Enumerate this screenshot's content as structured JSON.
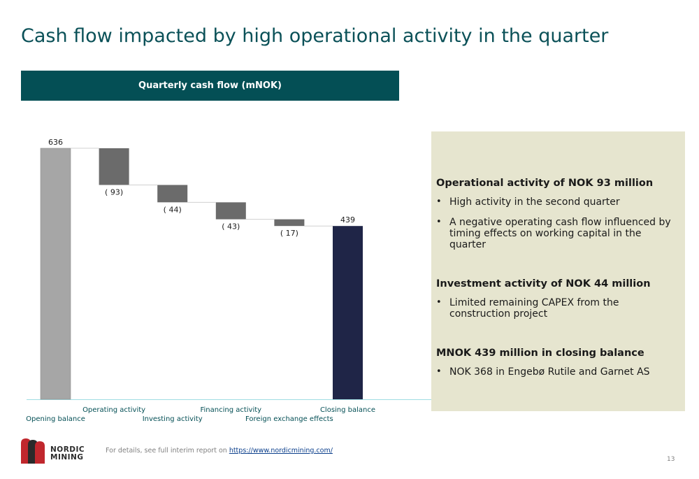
{
  "page": {
    "title": "Cash flow impacted by high operational activity in the quarter",
    "chart_header": "Quarterly cash flow (mNOK)",
    "page_number": "13"
  },
  "chart_data": {
    "type": "waterfall",
    "title": "Quarterly cash flow (mNOK)",
    "categories": [
      "Opening balance",
      "Operating activity",
      "Investing activity",
      "Financing activity",
      "Foreign exchange effects",
      "Closing balance"
    ],
    "values": [
      636,
      -93,
      -44,
      -43,
      -17,
      439
    ],
    "value_labels": [
      "636",
      "( 93)",
      "( 44)",
      "( 43)",
      "( 17)",
      "439"
    ],
    "kinds": [
      "total",
      "delta",
      "delta",
      "delta",
      "delta",
      "total"
    ],
    "ylim": [
      0,
      636
    ],
    "colors": {
      "opening": "#a6a6a6",
      "delta": "#6b6b6b",
      "closing": "#1f2547",
      "axis": "#9fdde3",
      "connector": "#d0d0d0",
      "category_label": "#044f55"
    }
  },
  "info_panel": {
    "sections": [
      {
        "heading": "Operational activity of NOK 93 million",
        "bullets": [
          "High activity in the second quarter",
          "A negative operating cash flow influenced by timing effects on working capital in the quarter"
        ]
      },
      {
        "heading": "Investment activity of NOK 44 million",
        "bullets": [
          "Limited remaining CAPEX from the construction project"
        ]
      },
      {
        "heading": "MNOK 439 million in closing balance",
        "bullets": [
          "NOK 368 in Engebø Rutile and Garnet AS"
        ]
      }
    ]
  },
  "footer": {
    "note_prefix": "For details, see full interim report on ",
    "link_text": "https://www.nordicmining.com/",
    "logo_line1": "NORDIC",
    "logo_line2": "MINING"
  }
}
